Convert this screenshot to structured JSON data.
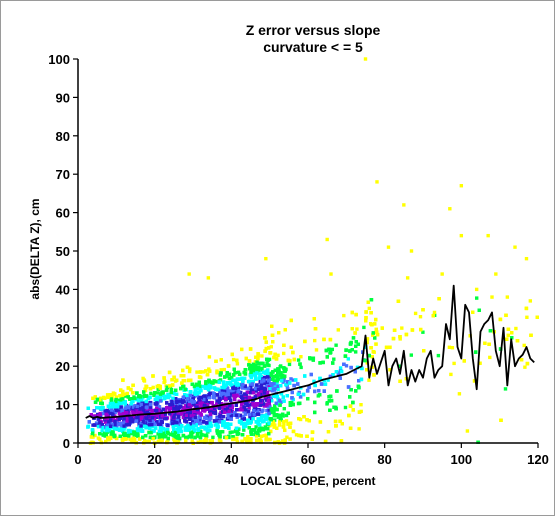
{
  "chart_data": {
    "type": "scatter",
    "title": "Z error versus slope",
    "subtitle": "curvature < = 5",
    "xlabel": "LOCAL SLOPE, percent",
    "ylabel": "abs(DELTA Z), cm",
    "xlim": [
      0,
      120
    ],
    "ylim": [
      0,
      100
    ],
    "xticks": [
      "0",
      "20",
      "40",
      "60",
      "80",
      "100",
      "120"
    ],
    "yticks": [
      "0",
      "10",
      "20",
      "30",
      "40",
      "50",
      "60",
      "70",
      "80",
      "90",
      "100"
    ],
    "grid": false,
    "legend": "none",
    "density_colors": {
      "low": "#ffff00",
      "medium_low": "#00ff40",
      "medium": "#00ffff",
      "medium_high": "#4a6fff",
      "high": "#2a1bd0",
      "highest": "#a000d0"
    },
    "mean_line": {
      "color": "#000000",
      "x": [
        2,
        3,
        4,
        5,
        6,
        8,
        10,
        12,
        14,
        16,
        18,
        20,
        22,
        24,
        26,
        28,
        30,
        32,
        34,
        36,
        38,
        40,
        42,
        44,
        46,
        48,
        50,
        52,
        54,
        56,
        58,
        60,
        62,
        64,
        66,
        68,
        70,
        72,
        74,
        75,
        76,
        77,
        78,
        79,
        80,
        81,
        82,
        83,
        84,
        85,
        86,
        87,
        88,
        89,
        90,
        91,
        92,
        93,
        94,
        95,
        96,
        97,
        98,
        99,
        100,
        101,
        102,
        103,
        104,
        105,
        106,
        107,
        108,
        109,
        110,
        111,
        112,
        113,
        114,
        115,
        116,
        117,
        118,
        119
      ],
      "y": [
        6.5,
        7,
        6.5,
        6.8,
        6.5,
        6.7,
        6.8,
        7,
        7.2,
        7.4,
        7.5,
        7.6,
        7.8,
        8,
        8.2,
        8.5,
        8.8,
        9,
        9.3,
        9.6,
        10,
        10.3,
        10.6,
        11,
        11.3,
        12,
        12.5,
        13,
        13.5,
        14,
        14.5,
        15,
        15.8,
        16.5,
        17,
        17.5,
        18,
        19,
        20,
        28,
        17,
        22,
        18,
        21,
        24,
        15,
        20,
        22,
        18,
        24,
        15,
        19,
        16,
        19,
        17,
        22,
        24,
        17,
        19,
        20,
        31,
        27,
        41,
        25,
        22,
        36,
        34,
        22,
        14,
        29,
        31,
        32,
        34,
        24,
        20,
        30,
        15,
        27,
        20,
        22,
        23,
        25,
        22,
        21
      ]
    },
    "outliers": [
      {
        "x": 29,
        "y": 44
      },
      {
        "x": 34,
        "y": 43
      },
      {
        "x": 49,
        "y": 48
      },
      {
        "x": 65,
        "y": 53
      },
      {
        "x": 66,
        "y": 44
      },
      {
        "x": 75,
        "y": 100
      },
      {
        "x": 78,
        "y": 68
      },
      {
        "x": 81,
        "y": 51
      },
      {
        "x": 85,
        "y": 62
      },
      {
        "x": 87,
        "y": 50
      },
      {
        "x": 97,
        "y": 61
      },
      {
        "x": 100,
        "y": 67
      },
      {
        "x": 100,
        "y": 54
      },
      {
        "x": 107,
        "y": 54
      },
      {
        "x": 109,
        "y": 44
      },
      {
        "x": 114,
        "y": 51
      },
      {
        "x": 117,
        "y": 48
      },
      {
        "x": 95,
        "y": 44
      },
      {
        "x": 104,
        "y": 40
      },
      {
        "x": 112,
        "y": 38
      },
      {
        "x": 86,
        "y": 43
      },
      {
        "x": 118,
        "y": 37
      },
      {
        "x": 93,
        "y": 34
      },
      {
        "x": 108,
        "y": 38
      }
    ]
  }
}
